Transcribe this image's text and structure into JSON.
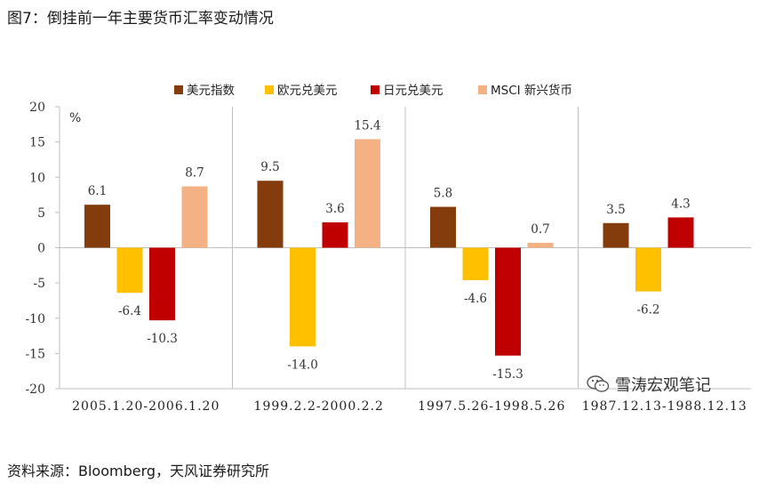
{
  "title": "图7：倒挂前一年主要货币汇率变动情况",
  "source": "资料来源：Bloomberg，天风证券研究所",
  "watermark": "雪涛宏观笔记",
  "chart_data": {
    "type": "bar",
    "title": "图7：倒挂前一年主要货币汇率变动情况",
    "ylabel": "%",
    "xlabel": "",
    "ylim": [
      -20,
      20
    ],
    "yticks": [
      20,
      15,
      10,
      5,
      0,
      -5,
      -10,
      -15,
      -20
    ],
    "grid": false,
    "legend_position": "top",
    "categories": [
      "2005.1.20-2006.1.20",
      "1999.2.2-2000.2.2",
      "1997.5.26-1998.5.26",
      "1987.12.13-1988.12.13"
    ],
    "series": [
      {
        "name": "美元指数",
        "color": "#843C0C",
        "values": [
          6.1,
          9.5,
          5.8,
          3.5
        ]
      },
      {
        "name": "欧元兑美元",
        "color": "#FFC000",
        "values": [
          -6.4,
          -14.0,
          -4.6,
          -6.2
        ]
      },
      {
        "name": "日元兑美元",
        "color": "#C00000",
        "values": [
          -10.3,
          3.6,
          -15.3,
          4.3
        ]
      },
      {
        "name": "MSCI 新兴货币",
        "color": "#F4B183",
        "values": [
          8.7,
          15.4,
          0.7,
          null
        ]
      }
    ]
  }
}
